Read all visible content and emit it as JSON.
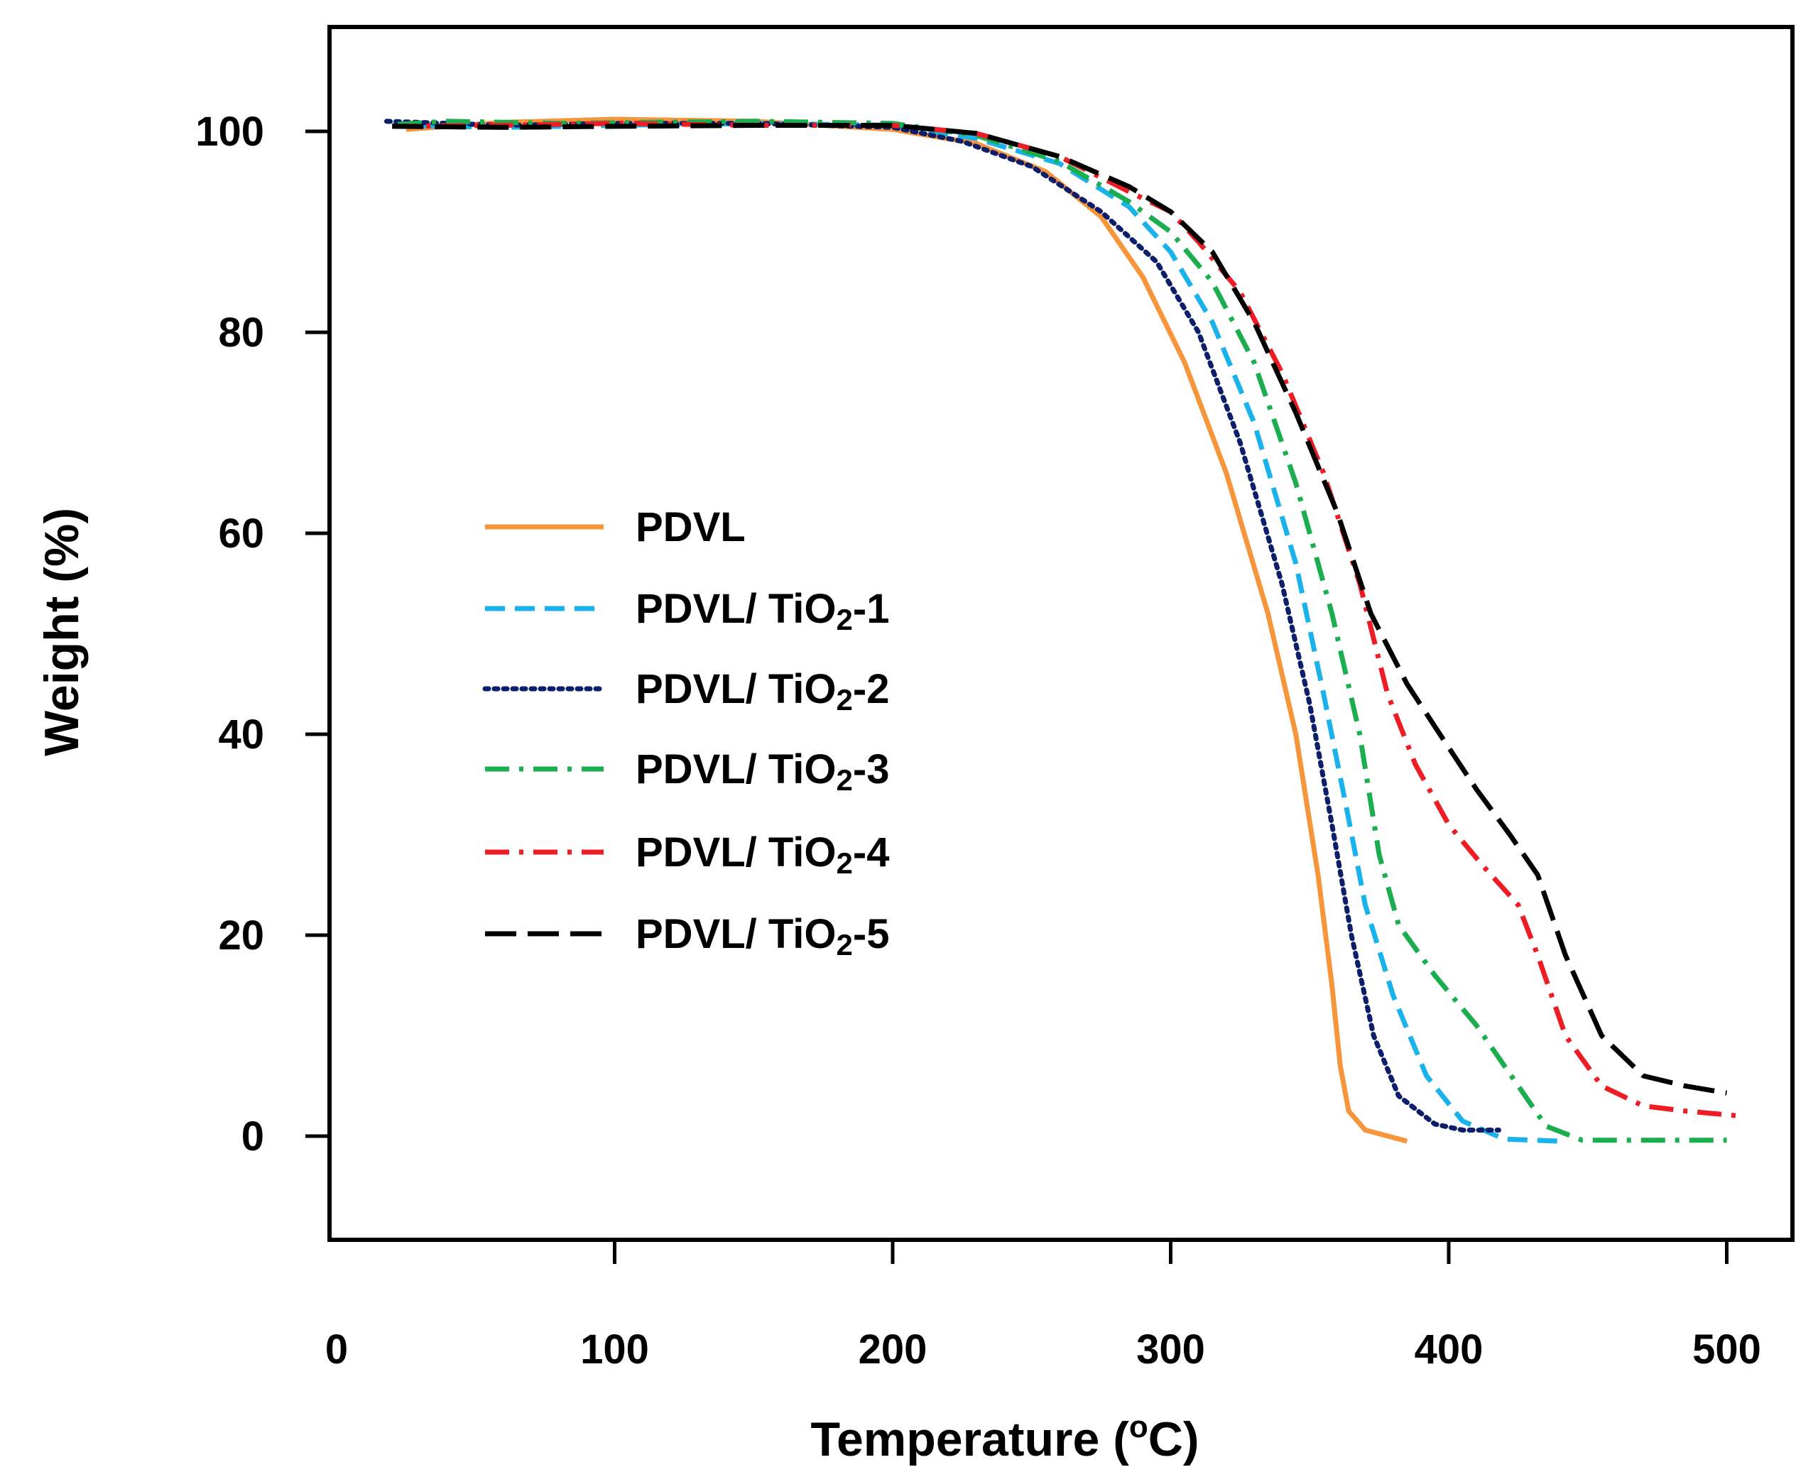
{
  "chart_data": {
    "type": "line",
    "title": "",
    "xlabel": "Temperature (",
    "xlabel_sup": "o",
    "xlabel_end": "C)",
    "ylabel": "Weight (%)",
    "xlim": [
      0,
      515
    ],
    "ylim": [
      -10,
      110
    ],
    "x_ticks": [
      0,
      100,
      200,
      300,
      400,
      500
    ],
    "y_ticks": [
      0,
      20,
      40,
      60,
      80,
      100
    ],
    "grid": false,
    "legend_position": "center-left",
    "series": [
      {
        "name": "PDVL",
        "label_prefix": "PDVL",
        "label_sub": "",
        "label_suffix": "",
        "color": "#f7953b",
        "dash": "solid",
        "points": [
          [
            25,
            100.2
          ],
          [
            60,
            100.9
          ],
          [
            100,
            101.2
          ],
          [
            150,
            101.0
          ],
          [
            200,
            100.2
          ],
          [
            230,
            98.8
          ],
          [
            255,
            96.0
          ],
          [
            275,
            91.5
          ],
          [
            290,
            85.5
          ],
          [
            305,
            77.0
          ],
          [
            320,
            66.0
          ],
          [
            335,
            52.0
          ],
          [
            345,
            40.0
          ],
          [
            353,
            26.0
          ],
          [
            358,
            15.0
          ],
          [
            361,
            7.0
          ],
          [
            364,
            2.5
          ],
          [
            370,
            0.6
          ],
          [
            385,
            -0.5
          ]
        ]
      },
      {
        "name": "PDVL/ TiO2-1",
        "label_prefix": "PDVL/ TiO",
        "label_sub": "2",
        "label_suffix": "-1",
        "color": "#1ab2ea",
        "dash": "dashed",
        "points": [
          [
            20,
            100.6
          ],
          [
            60,
            100.4
          ],
          [
            100,
            100.6
          ],
          [
            150,
            100.8
          ],
          [
            200,
            100.6
          ],
          [
            230,
            99.3
          ],
          [
            260,
            96.8
          ],
          [
            285,
            92.5
          ],
          [
            300,
            88.0
          ],
          [
            315,
            81.0
          ],
          [
            330,
            71.0
          ],
          [
            345,
            57.0
          ],
          [
            355,
            44.0
          ],
          [
            363,
            33.0
          ],
          [
            370,
            23.0
          ],
          [
            380,
            14.0
          ],
          [
            392,
            6.0
          ],
          [
            405,
            1.5
          ],
          [
            420,
            -0.3
          ],
          [
            440,
            -0.5
          ]
        ]
      },
      {
        "name": "PDVL/ TiO2-2",
        "label_prefix": "PDVL/ TiO",
        "label_sub": "2",
        "label_suffix": "-2",
        "color": "#0d1f6a",
        "dash": "dotted",
        "points": [
          [
            18,
            101.0
          ],
          [
            60,
            100.6
          ],
          [
            100,
            100.8
          ],
          [
            150,
            100.8
          ],
          [
            200,
            100.4
          ],
          [
            225,
            99.0
          ],
          [
            250,
            96.5
          ],
          [
            275,
            92.0
          ],
          [
            295,
            87.0
          ],
          [
            310,
            80.0
          ],
          [
            325,
            69.0
          ],
          [
            340,
            55.0
          ],
          [
            350,
            43.0
          ],
          [
            358,
            31.0
          ],
          [
            365,
            20.0
          ],
          [
            373,
            10.0
          ],
          [
            382,
            4.0
          ],
          [
            395,
            1.2
          ],
          [
            405,
            0.6
          ],
          [
            418,
            0.6
          ]
        ]
      },
      {
        "name": "PDVL/ TiO2-3",
        "label_prefix": "PDVL/ TiO",
        "label_sub": "2",
        "label_suffix": "-3",
        "color": "#1aae4e",
        "dash": "dashdot",
        "points": [
          [
            22,
            100.7
          ],
          [
            40,
            101.0
          ],
          [
            80,
            100.8
          ],
          [
            150,
            101.0
          ],
          [
            200,
            100.8
          ],
          [
            230,
            99.6
          ],
          [
            260,
            97.0
          ],
          [
            285,
            93.0
          ],
          [
            300,
            90.0
          ],
          [
            315,
            85.0
          ],
          [
            330,
            77.0
          ],
          [
            345,
            65.0
          ],
          [
            358,
            52.0
          ],
          [
            368,
            40.0
          ],
          [
            375,
            28.0
          ],
          [
            382,
            21.0
          ],
          [
            395,
            16.0
          ],
          [
            410,
            11.0
          ],
          [
            425,
            5.0
          ],
          [
            435,
            1.0
          ],
          [
            448,
            -0.4
          ],
          [
            500,
            -0.4
          ]
        ]
      },
      {
        "name": "PDVL/ TiO2-4",
        "label_prefix": "PDVL/ TiO",
        "label_sub": "2",
        "label_suffix": "-4",
        "color": "#ee1c24",
        "dash": "dashdot",
        "points": [
          [
            20,
            100.5
          ],
          [
            60,
            100.6
          ],
          [
            100,
            100.8
          ],
          [
            150,
            100.6
          ],
          [
            200,
            100.6
          ],
          [
            230,
            99.8
          ],
          [
            260,
            97.5
          ],
          [
            285,
            94.0
          ],
          [
            300,
            92.0
          ],
          [
            310,
            89.0
          ],
          [
            325,
            84.0
          ],
          [
            340,
            76.0
          ],
          [
            355,
            66.0
          ],
          [
            368,
            55.0
          ],
          [
            378,
            44.0
          ],
          [
            388,
            37.0
          ],
          [
            400,
            31.0
          ],
          [
            412,
            27.0
          ],
          [
            425,
            23.0
          ],
          [
            432,
            18.0
          ],
          [
            442,
            10.0
          ],
          [
            455,
            5.0
          ],
          [
            470,
            3.0
          ],
          [
            485,
            2.5
          ],
          [
            505,
            2.0
          ]
        ]
      },
      {
        "name": "PDVL/ TiO2-5",
        "label_prefix": "PDVL/ TiO",
        "label_sub": "2",
        "label_suffix": "-5",
        "color": "#000000",
        "dash": "longdash",
        "points": [
          [
            20,
            100.5
          ],
          [
            60,
            100.4
          ],
          [
            100,
            100.5
          ],
          [
            150,
            100.6
          ],
          [
            200,
            100.6
          ],
          [
            230,
            99.8
          ],
          [
            260,
            97.5
          ],
          [
            285,
            94.5
          ],
          [
            300,
            92.0
          ],
          [
            315,
            88.0
          ],
          [
            330,
            81.0
          ],
          [
            345,
            72.0
          ],
          [
            360,
            62.0
          ],
          [
            372,
            52.0
          ],
          [
            385,
            45.0
          ],
          [
            398,
            39.5
          ],
          [
            410,
            34.5
          ],
          [
            422,
            30.0
          ],
          [
            432,
            26.0
          ],
          [
            442,
            18.0
          ],
          [
            455,
            10.0
          ],
          [
            470,
            6.0
          ],
          [
            485,
            5.0
          ],
          [
            500,
            4.3
          ]
        ]
      }
    ]
  }
}
